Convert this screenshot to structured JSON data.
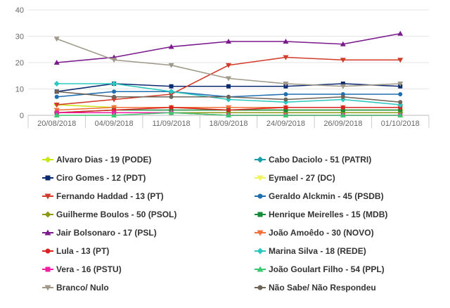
{
  "chart_data": {
    "type": "line",
    "categories": [
      "20/08/2018",
      "04/09/2018",
      "11/09/2018",
      "18/09/2018",
      "24/09/2018",
      "26/09/2018",
      "01/10/2018"
    ],
    "ylim": [
      0,
      40
    ],
    "yticks": [
      0,
      10,
      20,
      30,
      40
    ],
    "grid": true,
    "legend_position": "bottom",
    "series": [
      {
        "name": "Alvaro Dias - 19 (PODE)",
        "color": "#c8e619",
        "marker": "diamond",
        "values": [
          4,
          3,
          3,
          2,
          2,
          2,
          2
        ]
      },
      {
        "name": "Cabo Daciolo - 51 (PATRI)",
        "color": "#1a9eaa",
        "marker": "diamond",
        "values": [
          1,
          1,
          1,
          1,
          1,
          1,
          1
        ]
      },
      {
        "name": "Ciro Gomes - 12 (PDT)",
        "color": "#0b2a6f",
        "marker": "square",
        "values": [
          9,
          12,
          11,
          11,
          11,
          12,
          11
        ]
      },
      {
        "name": "Eymael - 27 (DC)",
        "color": "#f2f25a",
        "marker": "triangle-down",
        "values": [
          1,
          1,
          1,
          1,
          1,
          1,
          1
        ]
      },
      {
        "name": "Fernando Haddad - 13 (PT)",
        "color": "#d23a2a",
        "marker": "triangle-down",
        "values": [
          4,
          6,
          8,
          19,
          22,
          21,
          21
        ]
      },
      {
        "name": "Geraldo Alckmin - 45 (PSDB)",
        "color": "#1f6fb0",
        "marker": "circle",
        "values": [
          7,
          9,
          9,
          7,
          8,
          8,
          8
        ]
      },
      {
        "name": "Guilherme Boulos - 50 (PSOL)",
        "color": "#8c9a14",
        "marker": "diamond",
        "values": [
          1,
          1,
          1,
          1,
          1,
          1,
          1
        ]
      },
      {
        "name": "Henrique Meirelles - 15 (MDB)",
        "color": "#148a3a",
        "marker": "square",
        "values": [
          1,
          2,
          2,
          2,
          2,
          2,
          2
        ]
      },
      {
        "name": "Jair Bolsonaro - 17 (PSL)",
        "color": "#7a1a8c",
        "marker": "triangle",
        "values": [
          20,
          22,
          26,
          28,
          28,
          27,
          31
        ]
      },
      {
        "name": "João Amoêdo - 30 (NOVO)",
        "color": "#f2703a",
        "marker": "triangle-down",
        "values": [
          2,
          3,
          3,
          3,
          3,
          3,
          3
        ]
      },
      {
        "name": "Lula - 13 (PT)",
        "color": "#d92323",
        "marker": "circle",
        "values": [
          1,
          2,
          3,
          2,
          3,
          3,
          3
        ]
      },
      {
        "name": "Marina Silva - 18 (REDE)",
        "color": "#2cc8c0",
        "marker": "diamond",
        "values": [
          12,
          12,
          9,
          6,
          5,
          6,
          4
        ]
      },
      {
        "name": "Vera - 16 (PSTU)",
        "color": "#f01ea0",
        "marker": "square",
        "values": [
          1,
          1,
          1,
          0,
          0,
          0,
          0
        ]
      },
      {
        "name": "João Goulart Filho - 54 (PPL)",
        "color": "#3cc86e",
        "marker": "triangle",
        "values": [
          0,
          0,
          1,
          0,
          0,
          0,
          0
        ]
      },
      {
        "name": "Branco/ Nulo",
        "color": "#a09888",
        "marker": "triangle-down",
        "values": [
          29,
          21,
          19,
          14,
          12,
          11,
          12
        ]
      },
      {
        "name": "Não Sabe/ Não Respondeu",
        "color": "#6e6458",
        "marker": "circle",
        "values": [
          9,
          7,
          7,
          7,
          6,
          7,
          5
        ]
      }
    ]
  }
}
